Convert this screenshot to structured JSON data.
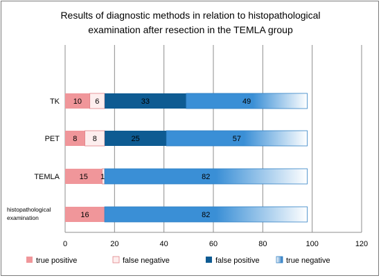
{
  "chart_data": {
    "type": "bar",
    "orientation": "horizontal",
    "stacked": true,
    "title": "Results of diagnostic methods in relation to histopathological examination after resection in the TEMLA group",
    "title_lines": [
      "Results of diagnostic methods in relation to histopathological",
      "examination after resection in the TEMLA group"
    ],
    "categories": [
      "TK",
      "PET",
      "TEMLA",
      "histopathological examination"
    ],
    "category_lines": [
      [
        "TK"
      ],
      [
        "PET"
      ],
      [
        "TEMLA"
      ],
      [
        "histopathological",
        "examination"
      ]
    ],
    "series": [
      {
        "name": "true positive",
        "values": [
          10,
          8,
          15,
          16
        ],
        "color": "#f0969a"
      },
      {
        "name": "false negative",
        "values": [
          6,
          8,
          1,
          0
        ],
        "color": "#fdeeee"
      },
      {
        "name": "false positive",
        "values": [
          33,
          25,
          0,
          0
        ],
        "color": "#0e5b92"
      },
      {
        "name": "true negative",
        "values": [
          49,
          57,
          82,
          82
        ],
        "color": "#3a8fd6"
      }
    ],
    "data_labels": [
      [
        "10",
        "6",
        "33",
        "49"
      ],
      [
        "8",
        "8",
        "25",
        "57"
      ],
      [
        "15",
        "1",
        "",
        "82"
      ],
      [
        "16",
        "",
        "",
        "82"
      ]
    ],
    "xlim": [
      0,
      120
    ],
    "xticks": [
      "0",
      "20",
      "40",
      "60",
      "80",
      "100",
      "120"
    ],
    "grid": true,
    "legend_position": "bottom"
  }
}
